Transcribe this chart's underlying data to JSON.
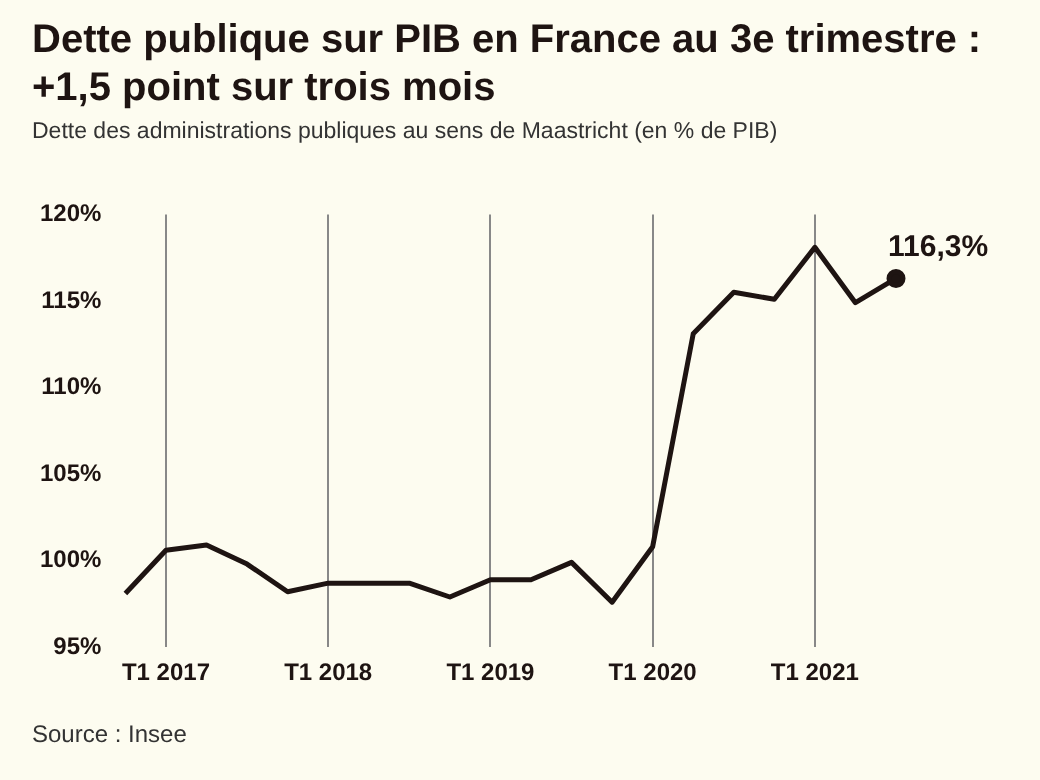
{
  "chart_data": {
    "type": "line",
    "title": "Dette publique sur PIB en France au 3e trimestre : +1,5 point sur trois mois",
    "subtitle": "Dette des administrations publiques au sens de Maastricht (en % de PIB)",
    "annotations": [
      "Source : Insee"
    ],
    "categories": [
      null,
      "T1 2017",
      null,
      null,
      null,
      "T1 2018",
      null,
      null,
      null,
      "T1 2019",
      null,
      null,
      null,
      "T1 2020",
      null,
      null,
      null,
      "T1 2021",
      null,
      null
    ],
    "series": [
      {
        "color": "#1e1412",
        "values": [
          98.1,
          100.6,
          100.9,
          99.8,
          98.2,
          98.7,
          98.7,
          98.7,
          97.9,
          98.9,
          98.9,
          99.9,
          97.6,
          100.8,
          113.1,
          115.5,
          115.1,
          118.1,
          114.9,
          116.3
        ],
        "value_labels": [
          null,
          null,
          null,
          null,
          null,
          null,
          null,
          null,
          null,
          null,
          null,
          null,
          null,
          null,
          null,
          null,
          null,
          null,
          null,
          "116,3%"
        ]
      }
    ],
    "ylim": [
      95,
      120
    ],
    "yticks": [
      {
        "value": 95,
        "label": "95%"
      },
      {
        "value": 100,
        "label": "100%"
      },
      {
        "value": 105,
        "label": "105%"
      },
      {
        "value": 110,
        "label": "110%"
      },
      {
        "value": 115,
        "label": "115%"
      },
      {
        "value": 120,
        "label": "120%"
      }
    ],
    "grid": "x",
    "legend": false,
    "marker": "none",
    "line_style": "solid"
  }
}
